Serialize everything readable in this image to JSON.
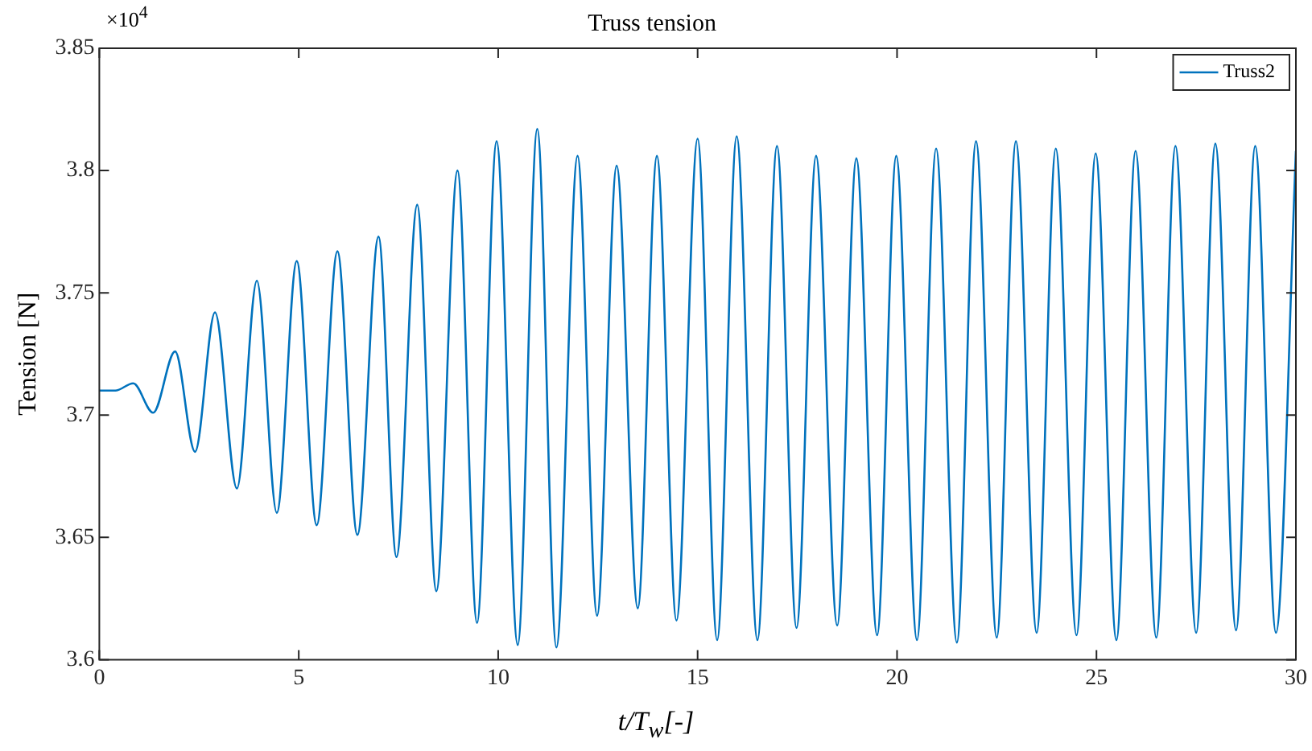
{
  "chart_data": {
    "type": "line",
    "title": "Truss tension",
    "xlabel": "t/T$_{w}$[-]",
    "ylabel": "Tension [N]",
    "annotations": [
      "×10$^{4}$"
    ],
    "xlim": [
      0,
      30
    ],
    "xticks": [
      0,
      5,
      10,
      15,
      20,
      25,
      30
    ],
    "ylim": [
      3.6,
      3.85
    ],
    "yticks": [
      3.6,
      3.65,
      3.7,
      3.75,
      3.8,
      3.85
    ],
    "grid": false,
    "legend": "top right",
    "marker": "none",
    "line_style": "solid",
    "series": [
      {
        "name": "Truss2",
        "color": "#0072bd",
        "x": [
          0,
          0.4,
          0.85,
          1.35,
          1.9,
          2.4,
          2.9,
          3.45,
          3.95,
          4.45,
          4.95,
          5.45,
          5.97,
          6.47,
          7.0,
          7.45,
          7.97,
          8.45,
          8.98,
          9.47,
          9.96,
          10.49,
          10.98,
          11.46,
          11.99,
          12.48,
          12.97,
          13.5,
          13.98,
          14.47,
          15.0,
          15.49,
          15.98,
          16.5,
          16.99,
          17.48,
          17.97,
          18.5,
          18.98,
          19.5,
          19.98,
          20.5,
          20.98,
          21.5,
          21.98,
          22.5,
          22.98,
          23.5,
          23.98,
          24.5,
          24.98,
          25.5,
          25.98,
          26.5,
          26.98,
          27.5,
          27.98,
          28.5,
          28.98,
          29.5,
          30
        ],
        "values": [
          3.71,
          3.71,
          3.713,
          3.701,
          3.726,
          3.685,
          3.742,
          3.67,
          3.755,
          3.66,
          3.763,
          3.655,
          3.767,
          3.651,
          3.773,
          3.642,
          3.786,
          3.628,
          3.8,
          3.615,
          3.812,
          3.606,
          3.817,
          3.605,
          3.806,
          3.618,
          3.802,
          3.621,
          3.806,
          3.616,
          3.813,
          3.608,
          3.814,
          3.608,
          3.81,
          3.613,
          3.806,
          3.614,
          3.805,
          3.61,
          3.806,
          3.608,
          3.809,
          3.607,
          3.812,
          3.609,
          3.812,
          3.611,
          3.809,
          3.61,
          3.807,
          3.608,
          3.808,
          3.609,
          3.81,
          3.611,
          3.811,
          3.612,
          3.81,
          3.611,
          3.808
        ]
      }
    ]
  }
}
